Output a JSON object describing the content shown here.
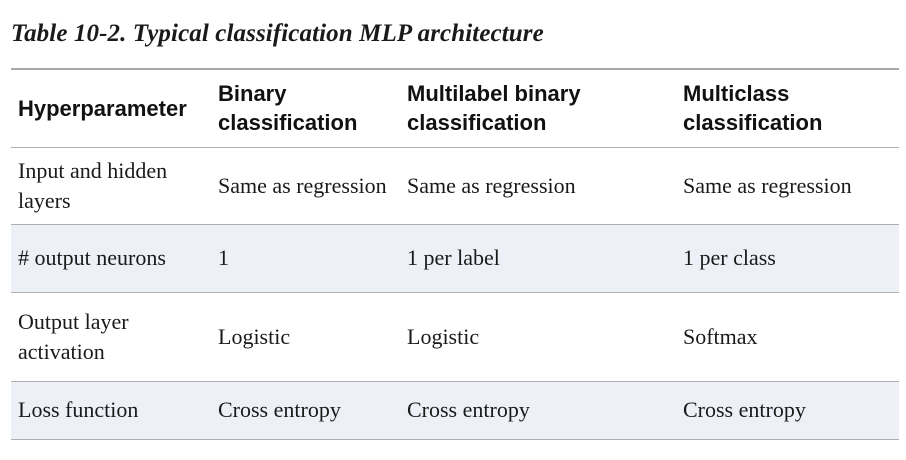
{
  "caption": "Table 10-2. Typical classification MLP architecture",
  "table": {
    "headers": [
      "Hyperparameter",
      "Binary classification",
      "Multilabel binary classification",
      "Multiclass classification"
    ],
    "rows": [
      [
        "Input and hidden layers",
        "Same as regression",
        "Same as regression",
        "Same as regression"
      ],
      [
        "# output neurons",
        "1",
        "1 per label",
        "1 per class"
      ],
      [
        "Output layer activation",
        "Logistic",
        "Logistic",
        "Softmax"
      ],
      [
        "Loss function",
        "Cross entropy",
        "Cross entropy",
        "Cross entropy"
      ]
    ]
  },
  "colors": {
    "row_stripe": "#edf1f7",
    "rule": "#a8a8a8"
  }
}
